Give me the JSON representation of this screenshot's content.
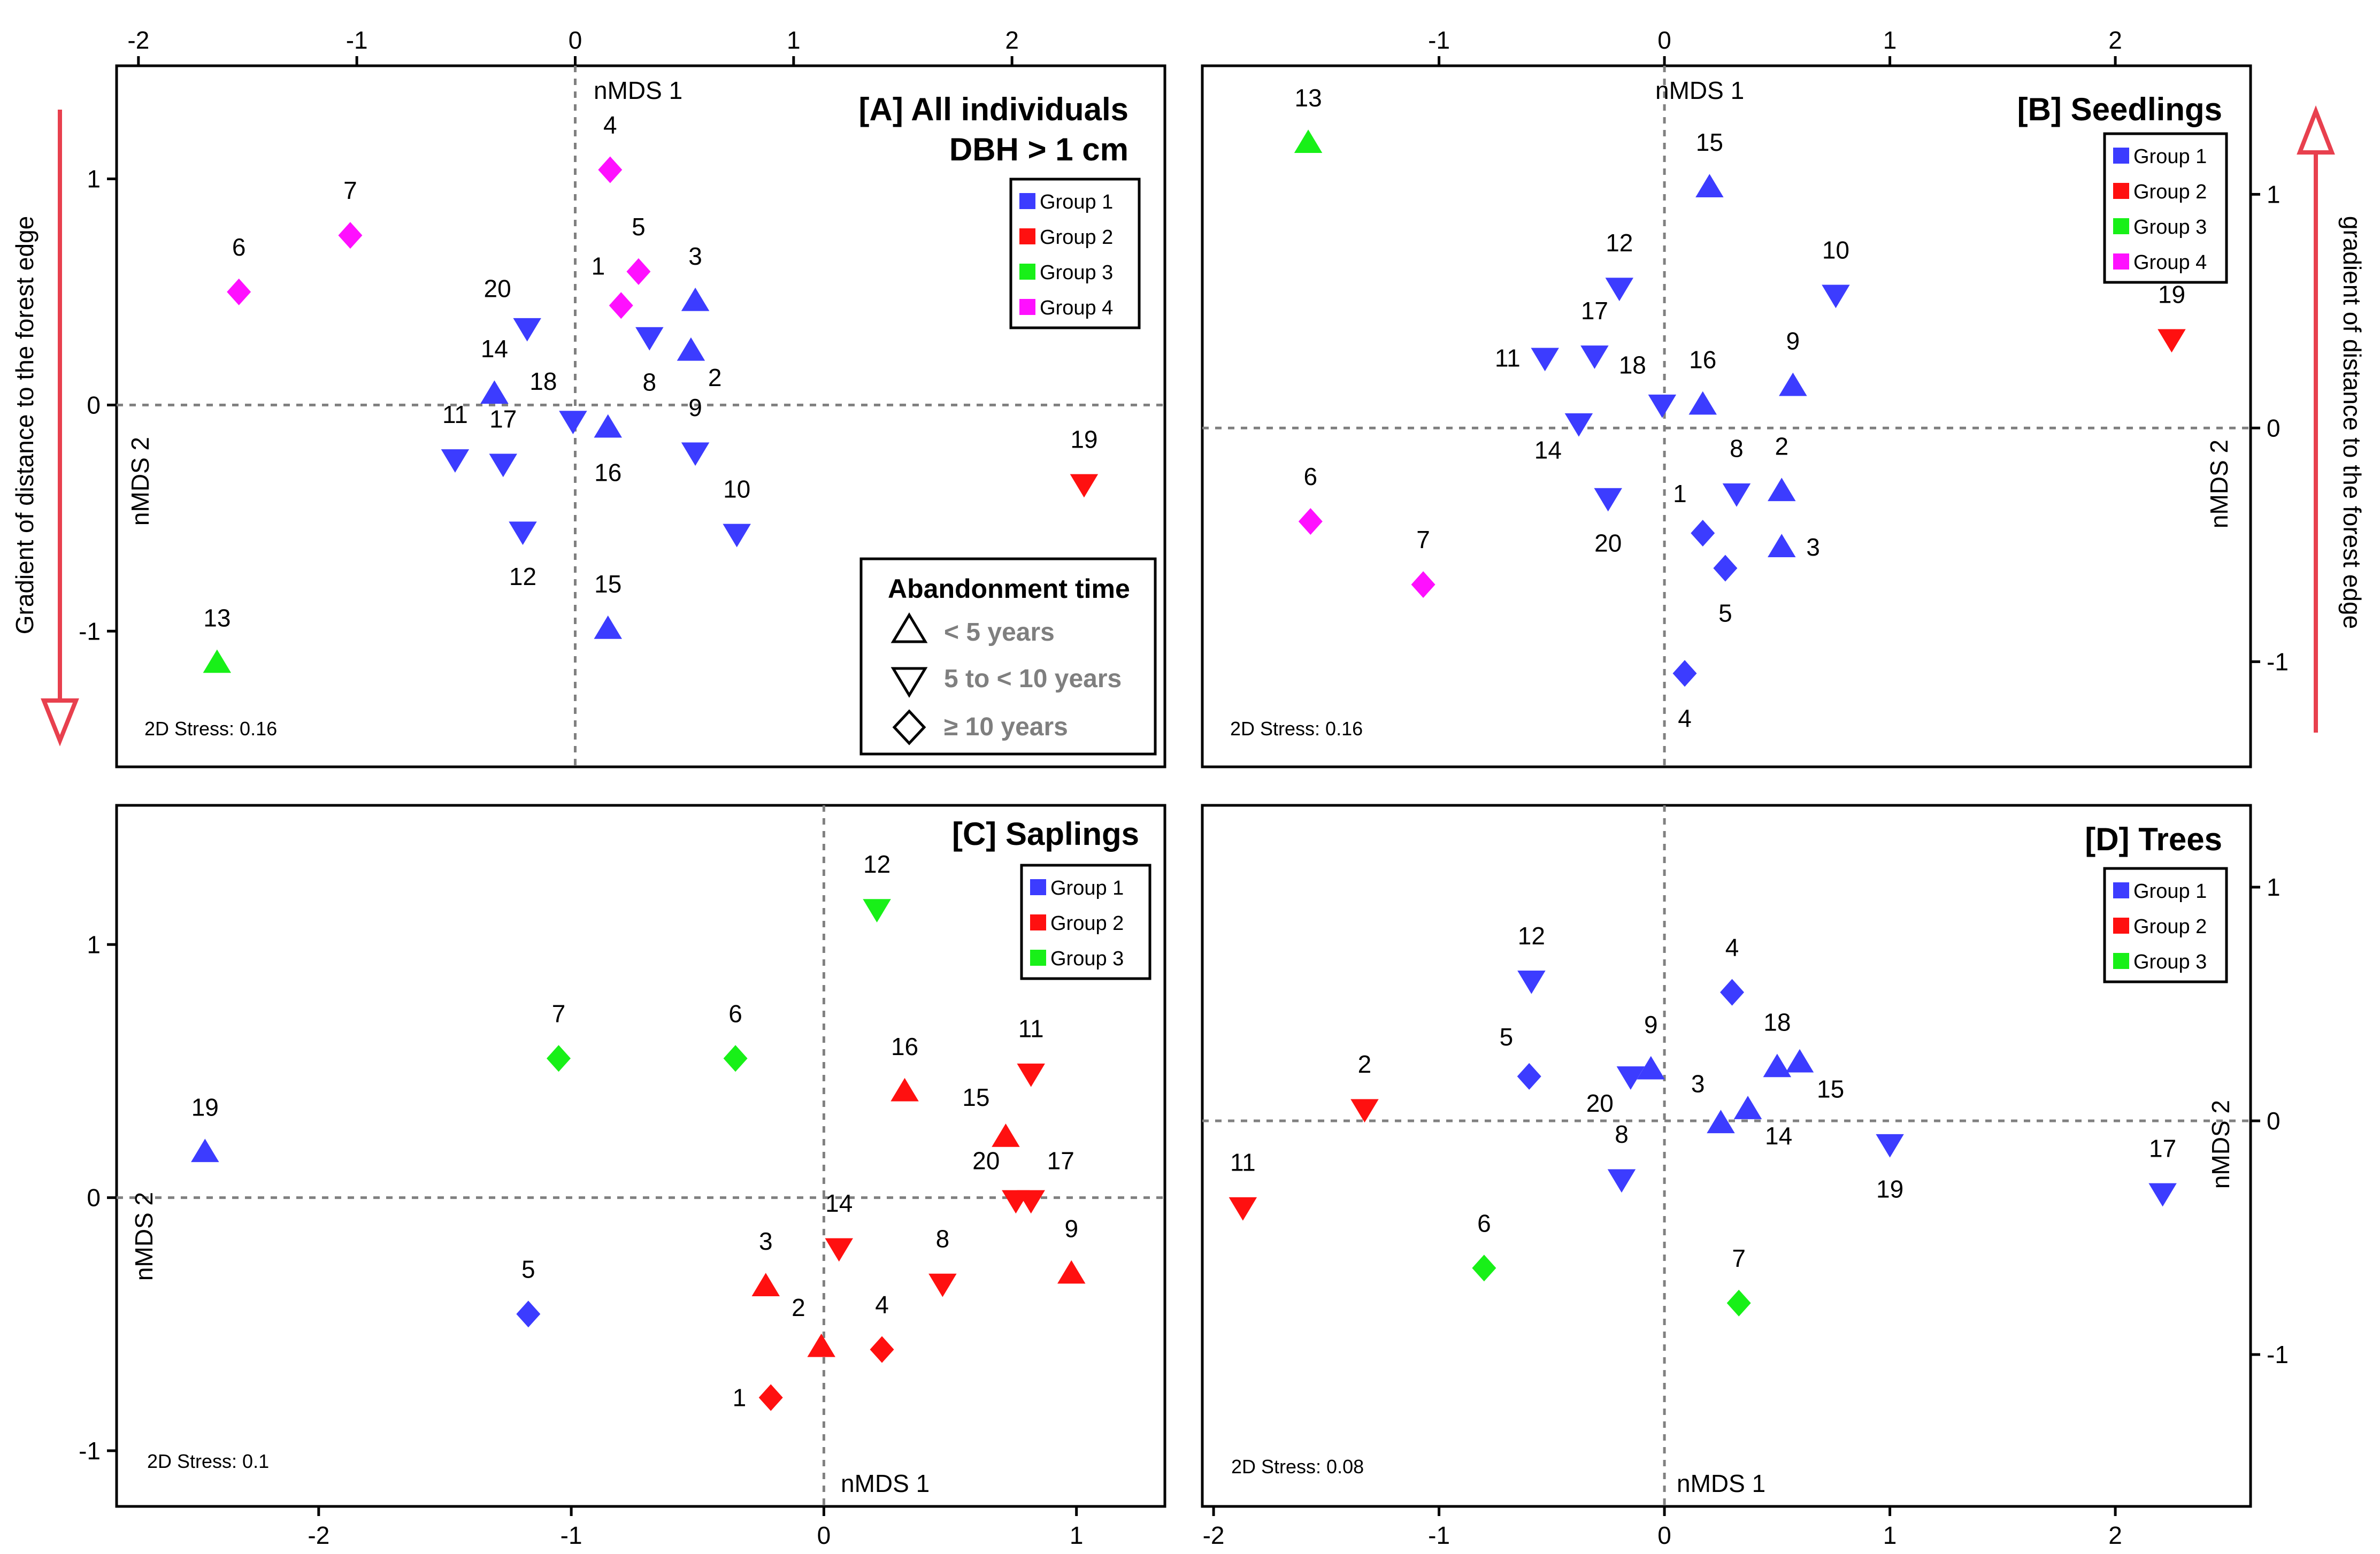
{
  "colors": {
    "group1": "#3c3cff",
    "group2": "#ff1010",
    "group3": "#18f018",
    "group4": "#ff10ff",
    "arrow": "#e8404e",
    "refline": "#808080"
  },
  "side_labels": {
    "left": "Gradient of distance to the forest edge",
    "right": "gradient of distance to the forest edge"
  },
  "abandonment": {
    "title": "Abandonment time",
    "items": [
      {
        "marker": "triangle-up",
        "label": "< 5 years"
      },
      {
        "marker": "triangle-down",
        "label": "5 to < 10 years"
      },
      {
        "marker": "diamond",
        "label": "≥ 10 years"
      }
    ]
  },
  "chart_data": [
    {
      "id": "A",
      "type": "scatter",
      "title": "[A] All individuals",
      "subtitle": "DBH > 1 cm",
      "xlabel": "nMDS 1",
      "ylabel": "nMDS 2",
      "stress": "2D Stress: 0.16",
      "xlim": [
        -2.1,
        2.7
      ],
      "ylim": [
        -1.6,
        1.5
      ],
      "xticks": [
        -2,
        -1,
        0,
        1,
        2
      ],
      "yticks": [
        -1,
        0,
        1
      ],
      "x_axis_side": "top",
      "y_axis_side": "left",
      "legend": [
        "Group 1",
        "Group 2",
        "Group 3",
        "Group 4"
      ],
      "points": [
        {
          "label": "1",
          "x": 0.21,
          "y": 0.44,
          "group": 4,
          "shape": "diamond",
          "lp": "nw"
        },
        {
          "label": "2",
          "x": 0.53,
          "y": 0.24,
          "group": 1,
          "shape": "up",
          "lp": "se"
        },
        {
          "label": "3",
          "x": 0.55,
          "y": 0.46,
          "group": 1,
          "shape": "up",
          "lp": "n"
        },
        {
          "label": "4",
          "x": 0.16,
          "y": 1.04,
          "group": 4,
          "shape": "diamond",
          "lp": "n"
        },
        {
          "label": "5",
          "x": 0.29,
          "y": 0.59,
          "group": 4,
          "shape": "diamond",
          "lp": "n"
        },
        {
          "label": "6",
          "x": -1.54,
          "y": 0.5,
          "group": 4,
          "shape": "diamond",
          "lp": "n"
        },
        {
          "label": "7",
          "x": -1.03,
          "y": 0.75,
          "group": 4,
          "shape": "diamond",
          "lp": "n"
        },
        {
          "label": "8",
          "x": 0.34,
          "y": 0.3,
          "group": 1,
          "shape": "down",
          "lp": "s"
        },
        {
          "label": "9",
          "x": 0.55,
          "y": -0.21,
          "group": 1,
          "shape": "down",
          "lp": "n"
        },
        {
          "label": "10",
          "x": 0.74,
          "y": -0.57,
          "group": 1,
          "shape": "down",
          "lp": "n"
        },
        {
          "label": "11",
          "x": -0.55,
          "y": -0.24,
          "group": 1,
          "shape": "down",
          "lp": "n"
        },
        {
          "label": "12",
          "x": -0.24,
          "y": -0.56,
          "group": 1,
          "shape": "down",
          "lp": "s"
        },
        {
          "label": "13",
          "x": -1.64,
          "y": -1.14,
          "group": 3,
          "shape": "up",
          "lp": "n"
        },
        {
          "label": "14",
          "x": -0.37,
          "y": 0.05,
          "group": 1,
          "shape": "up",
          "lp": "n"
        },
        {
          "label": "15",
          "x": 0.15,
          "y": -0.99,
          "group": 1,
          "shape": "up",
          "lp": "n"
        },
        {
          "label": "16",
          "x": 0.15,
          "y": -0.1,
          "group": 1,
          "shape": "up",
          "lp": "s"
        },
        {
          "label": "17",
          "x": -0.33,
          "y": -0.26,
          "group": 1,
          "shape": "down",
          "lp": "n"
        },
        {
          "label": "18",
          "x": -0.01,
          "y": -0.07,
          "group": 1,
          "shape": "down",
          "lp": "nw"
        },
        {
          "label": "19",
          "x": 2.33,
          "y": -0.35,
          "group": 2,
          "shape": "down",
          "lp": "n"
        },
        {
          "label": "20",
          "x": -0.22,
          "y": 0.34,
          "group": 1,
          "shape": "down",
          "lp": "nw"
        }
      ]
    },
    {
      "id": "B",
      "type": "scatter",
      "title": "[B] Seedlings",
      "xlabel": "nMDS 1",
      "ylabel": "nMDS 2",
      "stress": "2D Stress: 0.16",
      "xlim": [
        -2.05,
        2.6
      ],
      "ylim": [
        -1.45,
        1.55
      ],
      "xticks": [
        -1,
        0,
        1,
        2
      ],
      "yticks": [
        -1,
        0,
        1
      ],
      "x_axis_side": "top",
      "y_axis_side": "right",
      "legend": [
        "Group 1",
        "Group 2",
        "Group 3",
        "Group 4"
      ],
      "points": [
        {
          "label": "1",
          "x": 0.17,
          "y": -0.45,
          "group": 1,
          "shape": "diamond",
          "lp": "nw"
        },
        {
          "label": "2",
          "x": 0.52,
          "y": -0.27,
          "group": 1,
          "shape": "up",
          "lp": "n"
        },
        {
          "label": "3",
          "x": 0.52,
          "y": -0.51,
          "group": 1,
          "shape": "up",
          "lp": "e"
        },
        {
          "label": "4",
          "x": 0.09,
          "y": -1.05,
          "group": 1,
          "shape": "diamond",
          "lp": "s"
        },
        {
          "label": "5",
          "x": 0.27,
          "y": -0.6,
          "group": 1,
          "shape": "diamond",
          "lp": "s"
        },
        {
          "label": "6",
          "x": -1.57,
          "y": -0.4,
          "group": 4,
          "shape": "diamond",
          "lp": "n"
        },
        {
          "label": "7",
          "x": -1.07,
          "y": -0.67,
          "group": 4,
          "shape": "diamond",
          "lp": "n"
        },
        {
          "label": "8",
          "x": 0.32,
          "y": -0.28,
          "group": 1,
          "shape": "down",
          "lp": "n"
        },
        {
          "label": "9",
          "x": 0.57,
          "y": 0.18,
          "group": 1,
          "shape": "up",
          "lp": "n"
        },
        {
          "label": "10",
          "x": 0.76,
          "y": 0.57,
          "group": 1,
          "shape": "down",
          "lp": "n"
        },
        {
          "label": "11",
          "x": -0.53,
          "y": 0.3,
          "group": 1,
          "shape": "down",
          "lp": "w"
        },
        {
          "label": "12",
          "x": -0.2,
          "y": 0.6,
          "group": 1,
          "shape": "down",
          "lp": "n"
        },
        {
          "label": "13",
          "x": -1.58,
          "y": 1.22,
          "group": 3,
          "shape": "up",
          "lp": "n"
        },
        {
          "label": "14",
          "x": -0.38,
          "y": 0.02,
          "group": 1,
          "shape": "down",
          "lp": "sw"
        },
        {
          "label": "15",
          "x": 0.2,
          "y": 1.03,
          "group": 1,
          "shape": "up",
          "lp": "n"
        },
        {
          "label": "16",
          "x": 0.17,
          "y": 0.1,
          "group": 1,
          "shape": "up",
          "lp": "n"
        },
        {
          "label": "17",
          "x": -0.31,
          "y": 0.31,
          "group": 1,
          "shape": "down",
          "lp": "n"
        },
        {
          "label": "18",
          "x": -0.01,
          "y": 0.1,
          "group": 1,
          "shape": "down",
          "lp": "nw"
        },
        {
          "label": "19",
          "x": 2.25,
          "y": 0.38,
          "group": 2,
          "shape": "down",
          "lp": "n"
        },
        {
          "label": "20",
          "x": -0.25,
          "y": -0.3,
          "group": 1,
          "shape": "down",
          "lp": "s"
        }
      ]
    },
    {
      "id": "C",
      "type": "scatter",
      "title": "[C] Saplings",
      "xlabel": "nMDS 1",
      "ylabel": "nMDS 2",
      "stress": "2D Stress: 0.1",
      "xlim": [
        -2.8,
        1.35
      ],
      "ylim": [
        -1.22,
        1.55
      ],
      "xticks": [
        -2,
        -1,
        0,
        1
      ],
      "yticks": [
        -1,
        0,
        1
      ],
      "x_axis_side": "bottom",
      "y_axis_side": "left",
      "legend": [
        "Group 1",
        "Group 2",
        "Group 3"
      ],
      "points": [
        {
          "label": "1",
          "x": -0.21,
          "y": -0.79,
          "group": 2,
          "shape": "diamond",
          "lp": "w"
        },
        {
          "label": "2",
          "x": -0.01,
          "y": -0.59,
          "group": 2,
          "shape": "up",
          "lp": "nw"
        },
        {
          "label": "3",
          "x": -0.23,
          "y": -0.35,
          "group": 2,
          "shape": "up",
          "lp": "n"
        },
        {
          "label": "4",
          "x": 0.23,
          "y": -0.6,
          "group": 2,
          "shape": "diamond",
          "lp": "n"
        },
        {
          "label": "5",
          "x": -1.17,
          "y": -0.46,
          "group": 1,
          "shape": "diamond",
          "lp": "n"
        },
        {
          "label": "6",
          "x": -0.35,
          "y": 0.55,
          "group": 3,
          "shape": "diamond",
          "lp": "n"
        },
        {
          "label": "7",
          "x": -1.05,
          "y": 0.55,
          "group": 3,
          "shape": "diamond",
          "lp": "n"
        },
        {
          "label": "8",
          "x": 0.47,
          "y": -0.34,
          "group": 2,
          "shape": "down",
          "lp": "n"
        },
        {
          "label": "9",
          "x": 0.98,
          "y": -0.3,
          "group": 2,
          "shape": "up",
          "lp": "n"
        },
        {
          "label": "11",
          "x": 0.82,
          "y": 0.49,
          "group": 2,
          "shape": "down",
          "lp": "n"
        },
        {
          "label": "12",
          "x": 0.21,
          "y": 1.14,
          "group": 3,
          "shape": "down",
          "lp": "n"
        },
        {
          "label": "14",
          "x": 0.06,
          "y": -0.2,
          "group": 2,
          "shape": "down",
          "lp": "n"
        },
        {
          "label": "15",
          "x": 0.72,
          "y": 0.24,
          "group": 2,
          "shape": "up",
          "lp": "nw"
        },
        {
          "label": "16",
          "x": 0.32,
          "y": 0.42,
          "group": 2,
          "shape": "up",
          "lp": "n"
        },
        {
          "label": "17",
          "x": 0.82,
          "y": -0.01,
          "group": 2,
          "shape": "down",
          "lp": "ne"
        },
        {
          "label": "19",
          "x": -2.45,
          "y": 0.18,
          "group": 1,
          "shape": "up",
          "lp": "n"
        },
        {
          "label": "20",
          "x": 0.76,
          "y": -0.01,
          "group": 2,
          "shape": "down",
          "lp": "nw"
        }
      ]
    },
    {
      "id": "D",
      "type": "scatter",
      "title": "[D] Trees",
      "xlabel": "nMDS 1",
      "ylabel": "nMDS 2",
      "stress": "2D Stress: 0.08",
      "xlim": [
        -2.05,
        2.6
      ],
      "ylim": [
        -1.65,
        1.35
      ],
      "xticks": [
        -2,
        -1,
        0,
        1,
        2
      ],
      "yticks": [
        -1,
        0,
        1
      ],
      "x_axis_side": "bottom",
      "y_axis_side": "right",
      "legend": [
        "Group 1",
        "Group 2",
        "Group 3"
      ],
      "points": [
        {
          "label": "2",
          "x": -1.33,
          "y": 0.05,
          "group": 2,
          "shape": "down",
          "lp": "n"
        },
        {
          "label": "3",
          "x": 0.25,
          "y": -0.01,
          "group": 1,
          "shape": "up",
          "lp": "nw"
        },
        {
          "label": "4",
          "x": 0.3,
          "y": 0.55,
          "group": 1,
          "shape": "diamond",
          "lp": "n"
        },
        {
          "label": "5",
          "x": -0.6,
          "y": 0.19,
          "group": 1,
          "shape": "diamond",
          "lp": "nw"
        },
        {
          "label": "6",
          "x": -0.8,
          "y": -0.63,
          "group": 3,
          "shape": "diamond",
          "lp": "n"
        },
        {
          "label": "7",
          "x": 0.33,
          "y": -0.78,
          "group": 3,
          "shape": "diamond",
          "lp": "n"
        },
        {
          "label": "8",
          "x": -0.19,
          "y": -0.25,
          "group": 1,
          "shape": "down",
          "lp": "n"
        },
        {
          "label": "9",
          "x": -0.06,
          "y": 0.22,
          "group": 1,
          "shape": "up",
          "lp": "n"
        },
        {
          "label": "11",
          "x": -1.87,
          "y": -0.37,
          "group": 2,
          "shape": "down",
          "lp": "n"
        },
        {
          "label": "12",
          "x": -0.59,
          "y": 0.6,
          "group": 1,
          "shape": "down",
          "lp": "n"
        },
        {
          "label": "14",
          "x": 0.37,
          "y": 0.05,
          "group": 1,
          "shape": "up",
          "lp": "se"
        },
        {
          "label": "15",
          "x": 0.6,
          "y": 0.25,
          "group": 1,
          "shape": "up",
          "lp": "se"
        },
        {
          "label": "17",
          "x": 2.21,
          "y": -0.31,
          "group": 1,
          "shape": "down",
          "lp": "n"
        },
        {
          "label": "18",
          "x": 0.5,
          "y": 0.23,
          "group": 1,
          "shape": "up",
          "lp": "n"
        },
        {
          "label": "19",
          "x": 1.0,
          "y": -0.1,
          "group": 1,
          "shape": "down",
          "lp": "s"
        },
        {
          "label": "20",
          "x": -0.15,
          "y": 0.19,
          "group": 1,
          "shape": "down",
          "lp": "sw"
        }
      ]
    }
  ]
}
